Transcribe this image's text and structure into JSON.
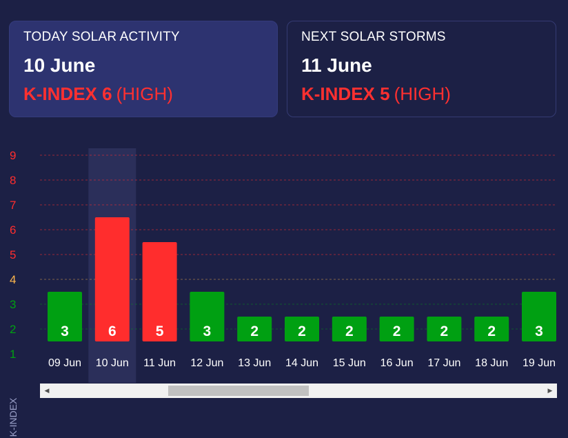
{
  "today_card": {
    "label": "TODAY SOLAR ACTIVITY",
    "date": "10 June",
    "kindex": "K-INDEX 6",
    "level": "(HIGH)"
  },
  "next_card": {
    "label": "NEXT SOLAR STORMS",
    "date": "11 June",
    "kindex": "K-INDEX 5",
    "level": "(HIGH)"
  },
  "colors": {
    "background": "#1c2045",
    "high": "#ff2d2d",
    "normal": "#00a012",
    "moderate": "#ffb74d",
    "highlight": "#2b2f5a"
  },
  "chart_data": {
    "type": "bar",
    "ylabel": "K-INDEX",
    "ylim": [
      1,
      9
    ],
    "yticks": [
      1,
      2,
      3,
      4,
      5,
      6,
      7,
      8,
      9
    ],
    "categories": [
      "09 Jun",
      "10 Jun",
      "11 Jun",
      "12 Jun",
      "13 Jun",
      "14 Jun",
      "15 Jun",
      "16 Jun",
      "17 Jun",
      "18 Jun",
      "19 Jun"
    ],
    "values": [
      3,
      6,
      5,
      3,
      2,
      2,
      2,
      2,
      2,
      2,
      3
    ],
    "highlighted_category": "10 Jun",
    "grid": true
  }
}
